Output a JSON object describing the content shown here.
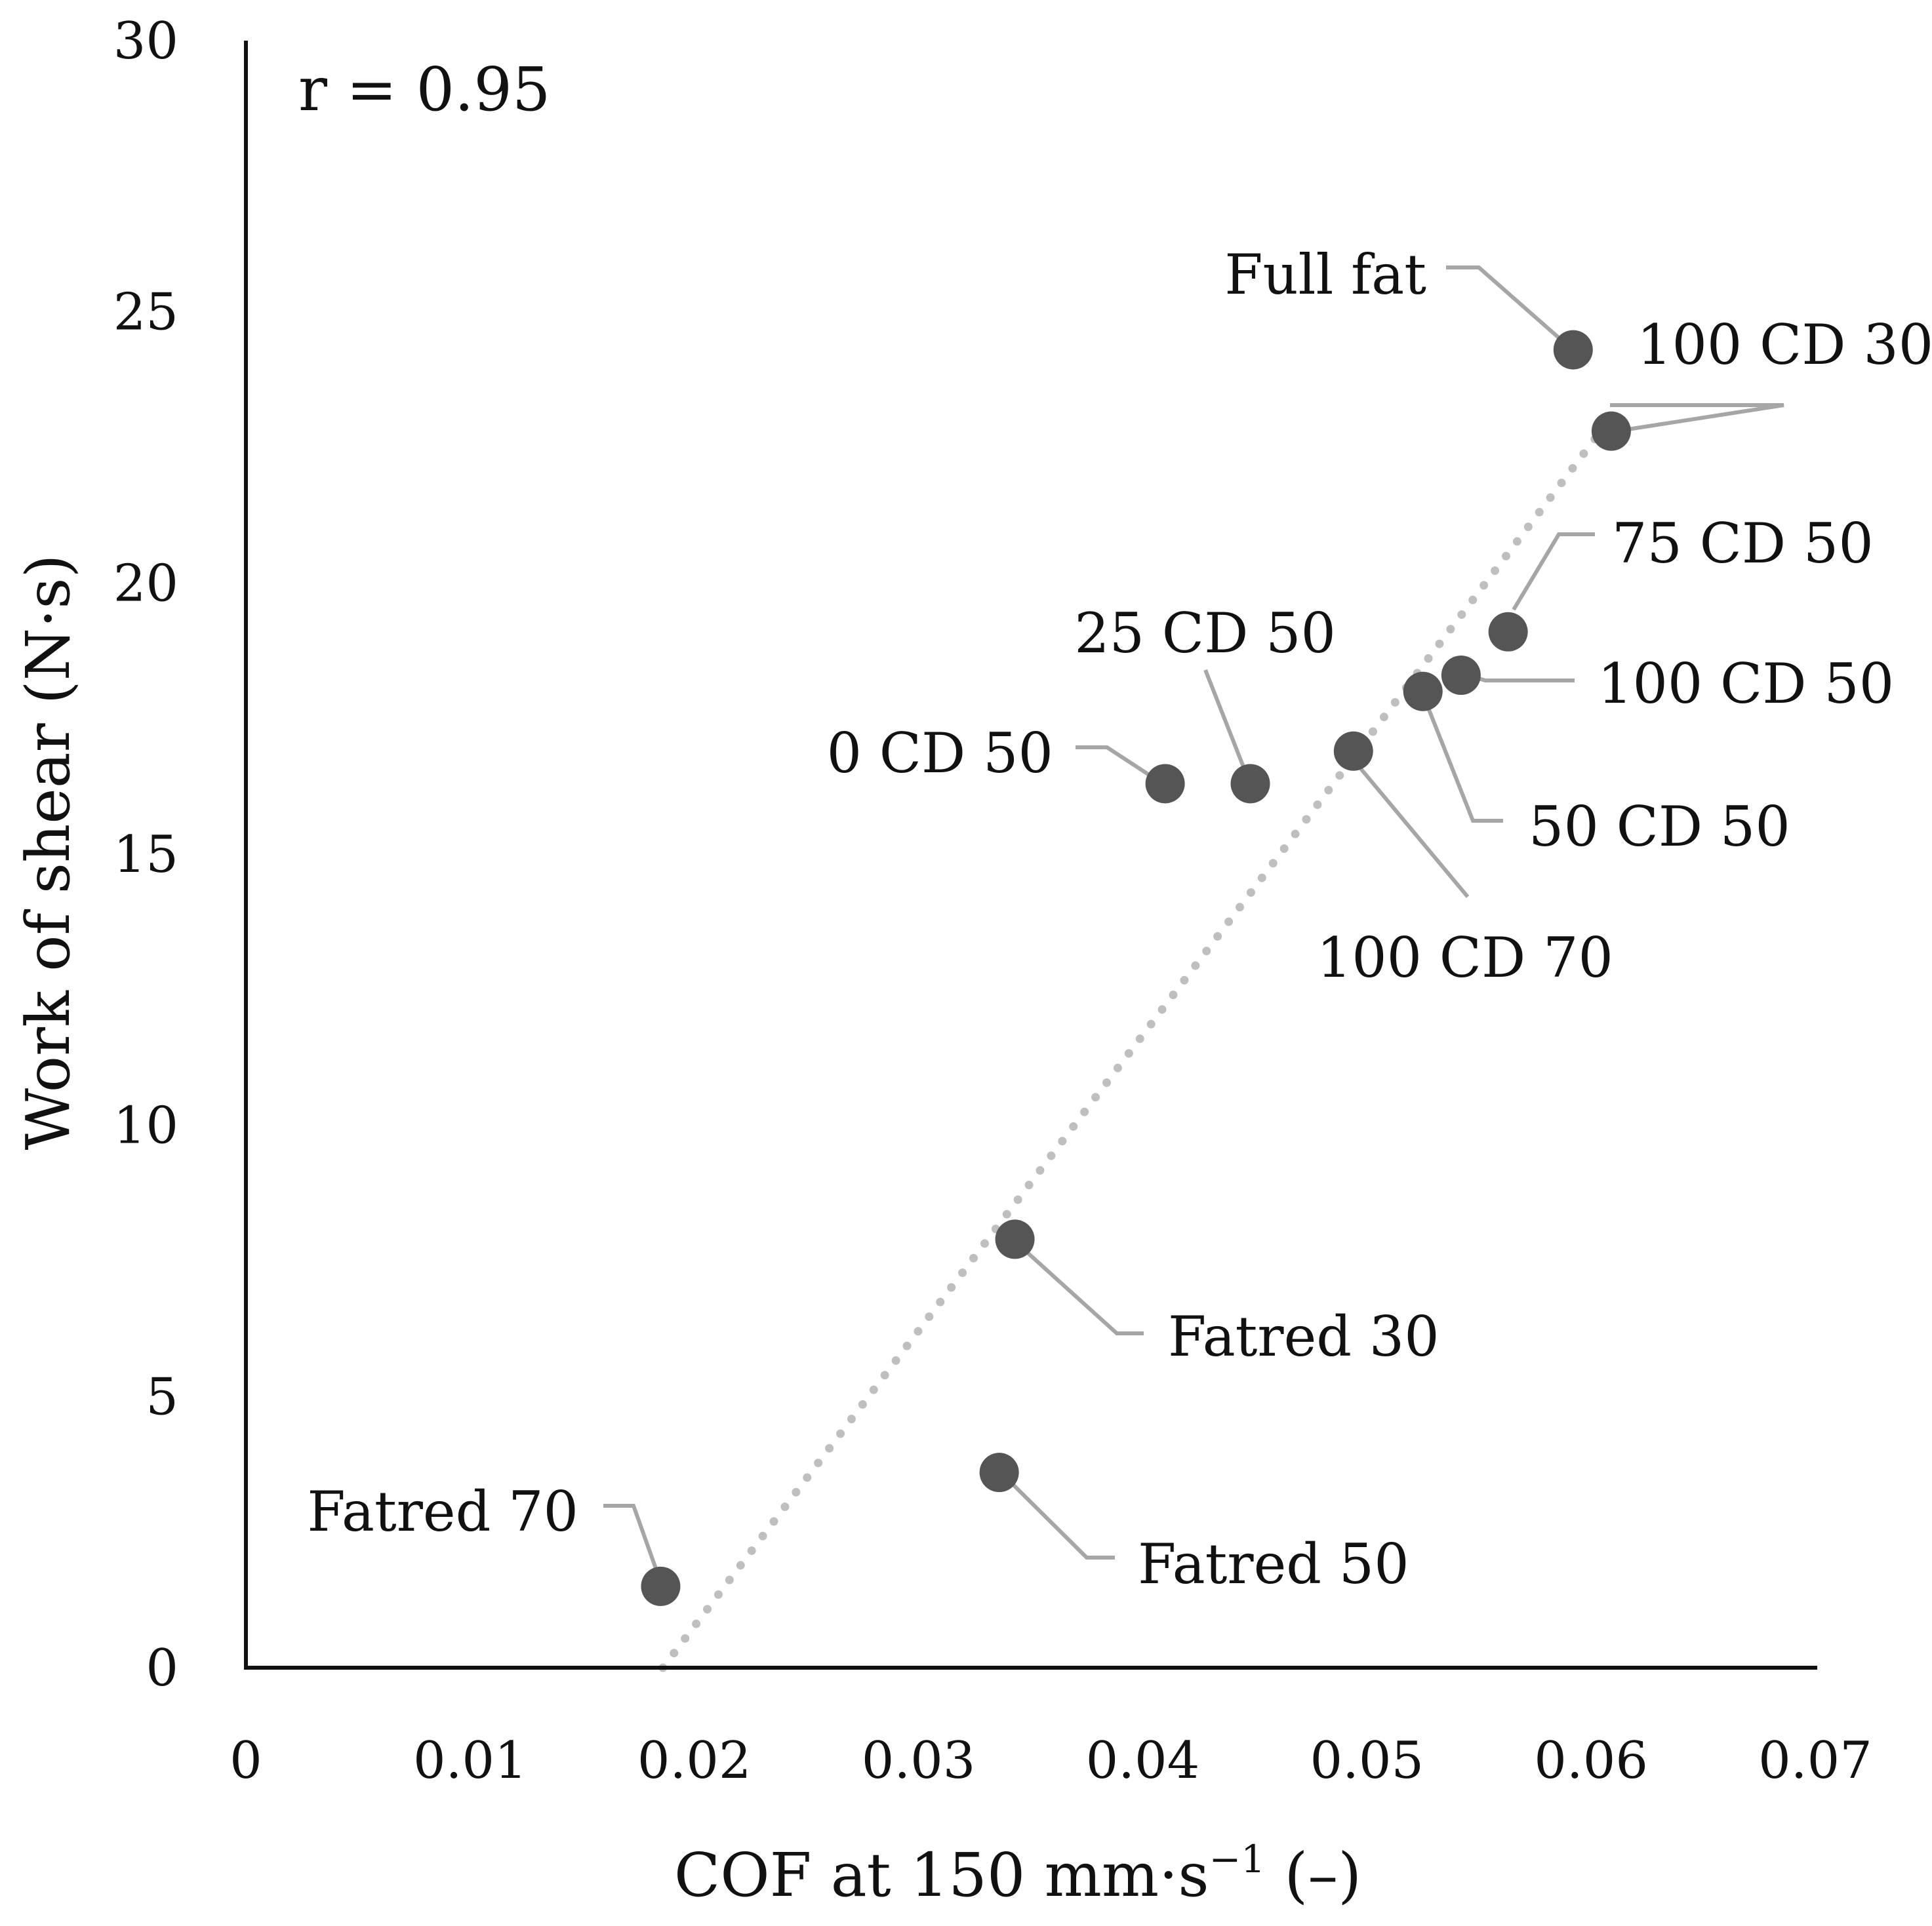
{
  "chart_data": {
    "type": "scatter",
    "title": "",
    "xlabel": "COF at 150 mm·s",
    "xlabel_sup": "−1",
    "xlabel_tail": " (–)",
    "ylabel": "Work of shear (N·s)",
    "xlim": [
      0,
      0.07
    ],
    "ylim": [
      0,
      30
    ],
    "x_ticks": [
      "0",
      "0.01",
      "0.02",
      "0.03",
      "0.04",
      "0.05",
      "0.06",
      "0.07"
    ],
    "y_ticks": [
      "0",
      "5",
      "10",
      "15",
      "20",
      "25",
      "30"
    ],
    "grid": false,
    "correlation_text": "r = 0.95",
    "point_color": "#555555",
    "trendline_color": "#bfbfbf",
    "leader_color": "#a6a6a6",
    "trendline": {
      "style": "dotted",
      "x_start": 0.0186,
      "y_start": 0,
      "x_end": 0.0608,
      "y_end": 23.0
    },
    "points": [
      {
        "label": "Full fat",
        "x": 0.0592,
        "y": 24.3
      },
      {
        "label": "100 CD 30",
        "x": 0.0609,
        "y": 22.8
      },
      {
        "label": "75 CD 50",
        "x": 0.0563,
        "y": 19.1
      },
      {
        "label": "100 CD 50",
        "x": 0.0542,
        "y": 18.3
      },
      {
        "label": "50 CD 50",
        "x": 0.0525,
        "y": 18.0
      },
      {
        "label": "25 CD 50",
        "x": 0.0448,
        "y": 16.3
      },
      {
        "label": "0 CD 50",
        "x": 0.041,
        "y": 16.3
      },
      {
        "label": "100 CD 70",
        "x": 0.0494,
        "y": 16.9
      },
      {
        "label": "Fatred 30",
        "x": 0.0343,
        "y": 7.9
      },
      {
        "label": "Fatred 50",
        "x": 0.0336,
        "y": 3.6
      },
      {
        "label": "Fatred 70",
        "x": 0.0185,
        "y": 1.5
      }
    ]
  }
}
